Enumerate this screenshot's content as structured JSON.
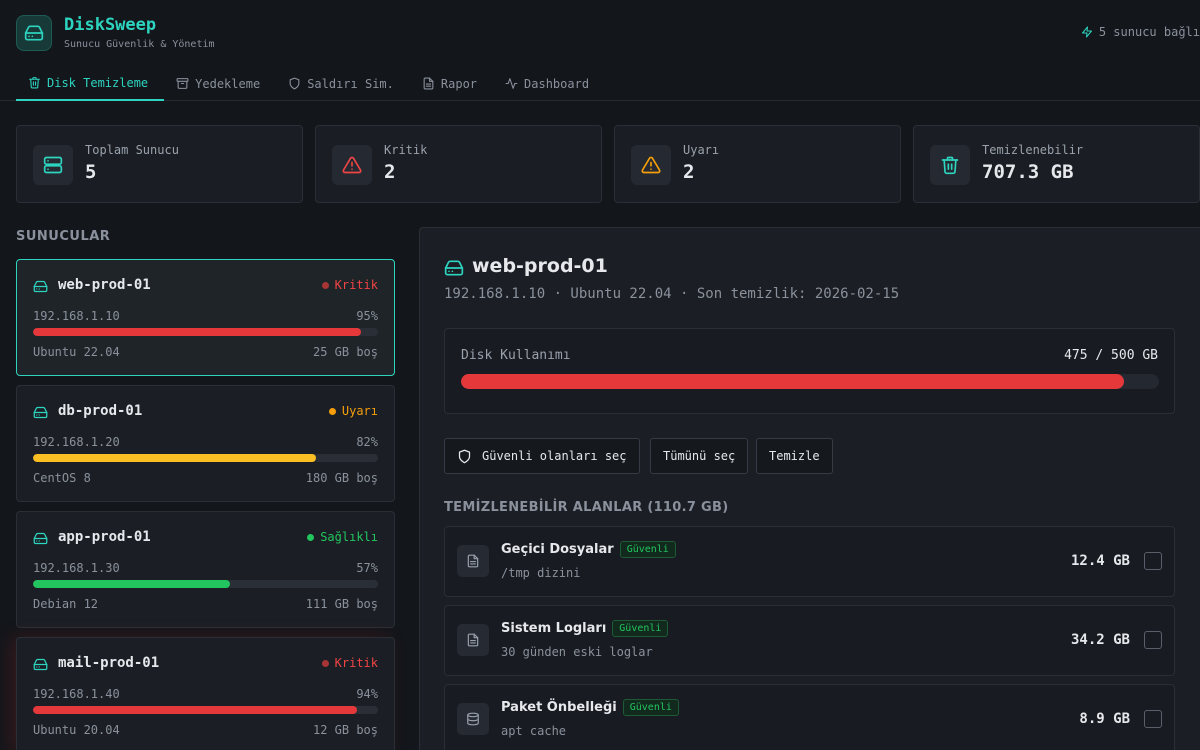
{
  "app": {
    "title": "DiskSweep",
    "subtitle": "Sunucu Güvenlik & Yönetim",
    "connection_status": "5 sunucu bağlı"
  },
  "tabs": [
    {
      "label": "Disk Temizleme",
      "icon": "trash-icon",
      "active": true
    },
    {
      "label": "Yedekleme",
      "icon": "archive-icon",
      "active": false
    },
    {
      "label": "Saldırı Sim.",
      "icon": "shield-icon",
      "active": false
    },
    {
      "label": "Rapor",
      "icon": "file-text-icon",
      "active": false
    },
    {
      "label": "Dashboard",
      "icon": "activity-icon",
      "active": false
    }
  ],
  "stats": [
    {
      "label": "Toplam Sunucu",
      "value": "5",
      "icon": "server-icon",
      "color": "#2dd4bf"
    },
    {
      "label": "Kritik",
      "value": "2",
      "icon": "alert-triangle-icon",
      "color": "#ef4444"
    },
    {
      "label": "Uyarı",
      "value": "2",
      "icon": "alert-triangle-icon",
      "color": "#f59e0b"
    },
    {
      "label": "Temizlenebilir",
      "value": "707.3 GB",
      "icon": "trash-icon",
      "color": "#2dd4bf"
    }
  ],
  "sidebar": {
    "title": "SUNUCULAR",
    "servers": [
      {
        "name": "web-prod-01",
        "status": "Kritik",
        "status_color": "#ef4444",
        "ip": "192.168.1.10",
        "usage_pct": "95%",
        "usage": 0.95,
        "bar_color": "#e5383b",
        "os": "Ubuntu 22.04",
        "free": "25 GB boş",
        "selected": true
      },
      {
        "name": "db-prod-01",
        "status": "Uyarı",
        "status_color": "#f59e0b",
        "ip": "192.168.1.20",
        "usage_pct": "82%",
        "usage": 0.82,
        "bar_color": "#fbbf24",
        "os": "CentOS 8",
        "free": "180 GB boş",
        "selected": false
      },
      {
        "name": "app-prod-01",
        "status": "Sağlıklı",
        "status_color": "#22c55e",
        "ip": "192.168.1.30",
        "usage_pct": "57%",
        "usage": 0.57,
        "bar_color": "#22c55e",
        "os": "Debian 12",
        "free": "111 GB boş",
        "selected": false
      },
      {
        "name": "mail-prod-01",
        "status": "Kritik",
        "status_color": "#ef4444",
        "ip": "192.168.1.40",
        "usage_pct": "94%",
        "usage": 0.94,
        "bar_color": "#e5383b",
        "os": "Ubuntu 20.04",
        "free": "12 GB boş",
        "selected": false
      }
    ]
  },
  "detail": {
    "name": "web-prod-01",
    "subtitle": "192.168.1.10 · Ubuntu 22.04 · Son temizlik: 2026-02-15",
    "usage_label": "Disk Kullanımı",
    "usage_value": "475 / 500 GB",
    "usage": 0.95,
    "buttons": {
      "select_safe": "Güvenli olanları seç",
      "select_all": "Tümünü seç",
      "clean": "Temizle"
    },
    "areas_title": "TEMİZLENEBİLİR ALANLAR (110.7 GB)",
    "areas": [
      {
        "name": "Geçici Dosyalar",
        "badge": "Güvenli",
        "desc": "/tmp dizini",
        "size": "12.4 GB",
        "icon": "file-icon"
      },
      {
        "name": "Sistem Logları",
        "badge": "Güvenli",
        "desc": "30 günden eski loglar",
        "size": "34.2 GB",
        "icon": "file-icon"
      },
      {
        "name": "Paket Önbelleği",
        "badge": "Güvenli",
        "desc": "apt cache",
        "size": "8.9 GB",
        "icon": "database-icon"
      }
    ]
  },
  "colors": {
    "accent": "#2dd4bf",
    "critical": "#ef4444",
    "warning": "#f59e0b",
    "healthy": "#22c55e"
  }
}
